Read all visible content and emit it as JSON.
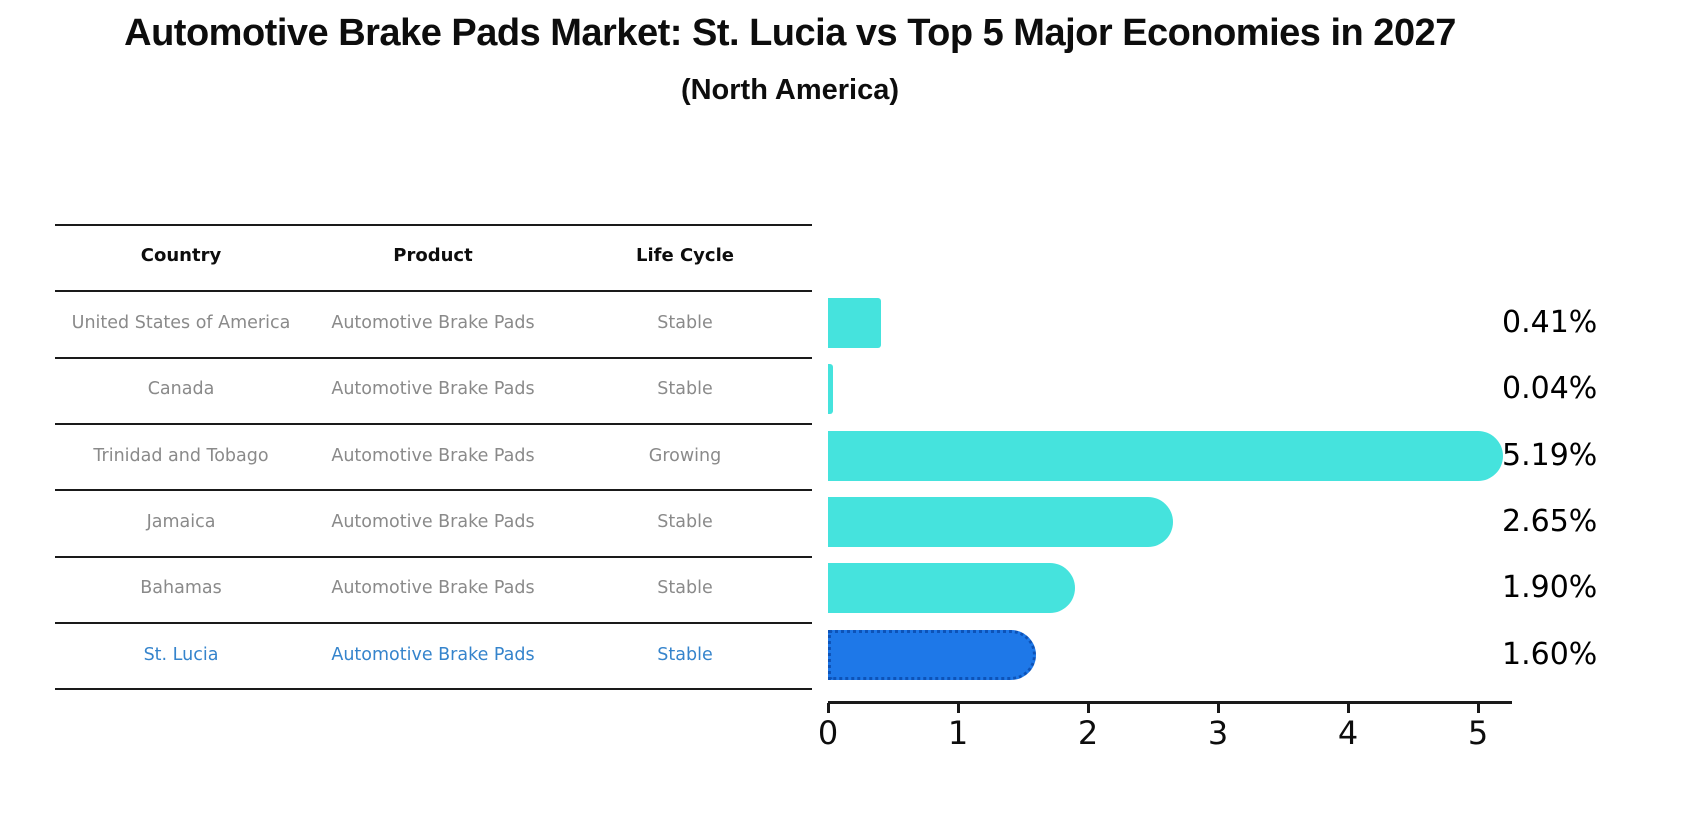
{
  "title": "Automotive Brake Pads Market: St. Lucia vs Top 5 Major Economies in 2027",
  "subtitle": "(North America)",
  "table": {
    "columns": [
      "Country",
      "Product",
      "Life Cycle"
    ],
    "rows": [
      {
        "country": "United States of America",
        "product": "Automotive Brake Pads",
        "life_cycle": "Stable",
        "highlight": false
      },
      {
        "country": "Canada",
        "product": "Automotive Brake Pads",
        "life_cycle": "Stable",
        "highlight": false
      },
      {
        "country": "Trinidad and Tobago",
        "product": "Automotive Brake Pads",
        "life_cycle": "Growing",
        "highlight": false
      },
      {
        "country": "Jamaica",
        "product": "Automotive Brake Pads",
        "life_cycle": "Stable",
        "highlight": false
      },
      {
        "country": "Bahamas",
        "product": "Automotive Brake Pads",
        "life_cycle": "Stable",
        "highlight": false
      },
      {
        "country": "St. Lucia",
        "product": "Automotive Brake Pads",
        "life_cycle": "Stable",
        "highlight": true
      }
    ]
  },
  "chart_data": {
    "type": "bar",
    "orientation": "horizontal",
    "title": "Automotive Brake Pads Market: St. Lucia vs Top 5 Major Economies in 2027",
    "subtitle": "(North America)",
    "categories": [
      "United States of America",
      "Canada",
      "Trinidad and Tobago",
      "Jamaica",
      "Bahamas",
      "St. Lucia"
    ],
    "values": [
      0.41,
      0.04,
      5.19,
      2.65,
      1.9,
      1.6
    ],
    "value_labels": [
      "0.41%",
      "0.04%",
      "5.19%",
      "2.65%",
      "1.90%",
      "1.60%"
    ],
    "xlabel": "",
    "ylabel": "",
    "xlim": [
      0,
      5.26
    ],
    "xticks": [
      0,
      1,
      2,
      3,
      4,
      5
    ],
    "xtick_labels": [
      "0",
      "1",
      "2",
      "3",
      "4",
      "5"
    ],
    "grid": false,
    "legend": "none",
    "highlight_index": 5
  },
  "colors": {
    "bar_default": "#45e3dd",
    "bar_highlight": "#1e78e8",
    "bar_highlight_border": "#0d53b8",
    "row_text": "#8a8a8a",
    "row_text_highlight": "#3584cc",
    "axis_and_lines": "#1a1a1a",
    "title_text": "#0d0d0d",
    "background": "#ffffff"
  }
}
